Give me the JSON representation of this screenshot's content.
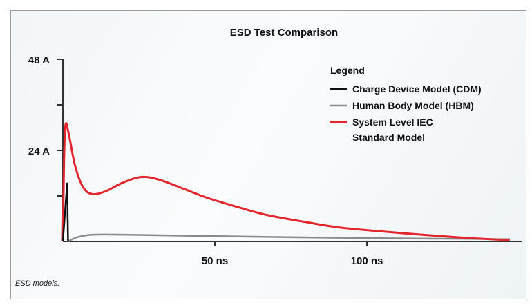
{
  "chart_data": {
    "type": "line",
    "title": "ESD Test Comparison",
    "xlabel": "",
    "ylabel": "",
    "xlim": [
      0,
      151
    ],
    "ylim": [
      0,
      48
    ],
    "x_ticks": [
      {
        "value": 50,
        "label": "50 ns"
      },
      {
        "value": 100,
        "label": "100 ns"
      }
    ],
    "y_ticks": [
      {
        "value": 12,
        "label": ""
      },
      {
        "value": 24,
        "label": "24 A"
      },
      {
        "value": 36,
        "label": ""
      },
      {
        "value": 48,
        "label": "48 A"
      }
    ],
    "grid": false,
    "legend": {
      "title": "Legend",
      "placement": "top-right"
    },
    "series": [
      {
        "name": "Charge Device Model (CDM)",
        "color": "#111111",
        "points": [
          [
            0,
            0
          ],
          [
            1.4,
            15.3
          ],
          [
            1.7,
            0
          ]
        ]
      },
      {
        "name": "Human Body Model (HBM)",
        "color": "#8a8a8a",
        "points": [
          [
            1.7,
            0
          ],
          [
            5,
            1.2
          ],
          [
            10,
            1.8
          ],
          [
            20,
            1.8
          ],
          [
            50,
            1.4
          ],
          [
            100,
            0.9
          ],
          [
            147,
            0.6
          ]
        ]
      },
      {
        "name": "System Level IEC Standard Model",
        "legend_lines": [
          "System Level IEC",
          "Standard Model"
        ],
        "color": "#e3262e",
        "points": [
          [
            0,
            0
          ],
          [
            0.4,
            22
          ],
          [
            0.9,
            30.9
          ],
          [
            2,
            28
          ],
          [
            4,
            20
          ],
          [
            6.5,
            14.5
          ],
          [
            9.5,
            12.5
          ],
          [
            14,
            13.2
          ],
          [
            20,
            15.6
          ],
          [
            26,
            17
          ],
          [
            32,
            16.2
          ],
          [
            40,
            13.8
          ],
          [
            47.5,
            11.5
          ],
          [
            57,
            9.2
          ],
          [
            67,
            7
          ],
          [
            80,
            5.1
          ],
          [
            92,
            3.6
          ],
          [
            110,
            2.3
          ],
          [
            130,
            1.1
          ],
          [
            147,
            0.3
          ]
        ]
      }
    ]
  },
  "caption": "ESD models."
}
